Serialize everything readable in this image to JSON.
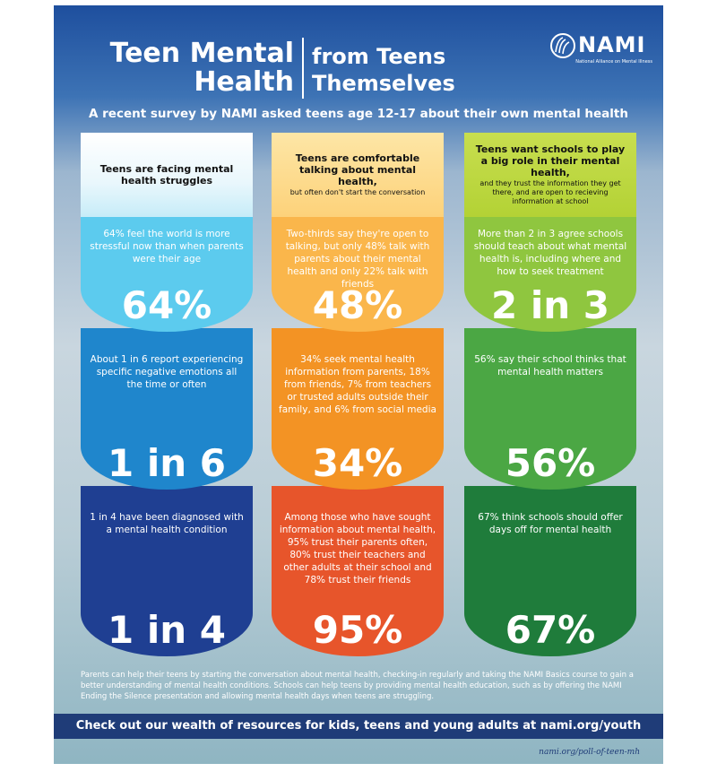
{
  "header": {
    "title_lines": [
      "Teen Mental",
      "Health"
    ],
    "tagline_lines": [
      "from Teens",
      "Themselves"
    ],
    "logo_name": "NAMI",
    "logo_tagline": "National Alliance on Mental Illness",
    "subtitle": "A recent survey by NAMI asked teens age 12-17 about their own mental health"
  },
  "columns": [
    {
      "heading": "Teens are facing mental health struggles",
      "cards": [
        {
          "text": "64% feel the world is more stressful now than when parents were their age",
          "stat": "64%"
        },
        {
          "text": "About 1 in 6 report experiencing specific negative emotions all the time or often",
          "stat": "1 in 6"
        },
        {
          "text": "1 in 4 have been diagnosed with a mental health condition",
          "stat": "1 in 4"
        }
      ]
    },
    {
      "heading": "Teens are comfortable talking about mental health,",
      "heading_note": "but often don't start the conversation",
      "cards": [
        {
          "text": "Two-thirds say they're open to talking, but only 48% talk with parents about their mental health and only 22% talk with friends",
          "stat": "48%"
        },
        {
          "text": "34% seek mental health information from parents, 18% from friends, 7% from teachers or trusted adults outside their family, and 6% from social media",
          "stat": "34%"
        },
        {
          "text": "Among those who have sought information about mental health, 95% trust their parents often, 80% trust their teachers and other adults at their school and 78% trust their friends",
          "stat": "95%"
        }
      ]
    },
    {
      "heading": "Teens want schools to play a big role in their mental health,",
      "heading_note": "and they trust the information they get there, and are open to recieving information at school",
      "cards": [
        {
          "text": "More than 2 in 3 agree schools should teach about what mental health is, including where and how to seek treatment",
          "stat": "2 in 3"
        },
        {
          "text": "56% say their school thinks that mental health matters",
          "stat": "56%"
        },
        {
          "text": "67% think schools should offer days off for mental health",
          "stat": "67%"
        }
      ]
    }
  ],
  "footer": {
    "text": "Parents can help their teens by starting the conversation about mental health, checking-in regularly and taking the NAMI Basics course to gain a better understanding of mental health conditions. Schools can help teens by providing mental health education, such as by offering the NAMI Ending the Silence presentation and allowing mental health days when teens are struggling.",
    "banner": "Check out our wealth of resources for kids, teens and young adults at nami.org/youth",
    "source": "nami.org/poll-of-teen-mh"
  }
}
